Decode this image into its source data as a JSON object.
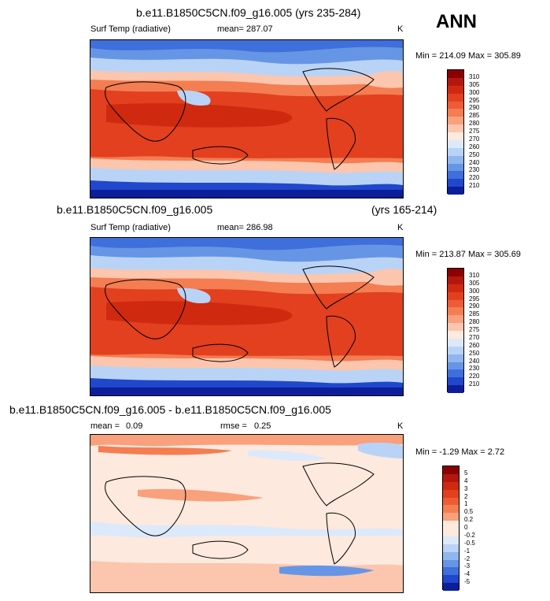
{
  "season": "ANN",
  "panels": [
    {
      "title": "b.e11.B1850C5CN.f09_g16.005 (yrs 235-284)",
      "variable": "Surf Temp (radiative)",
      "mean": "mean= 287.07",
      "units": "K",
      "minmax": "Min = 214.09 Max = 305.89",
      "colorbar": {
        "labels": [
          "310",
          "305",
          "300",
          "295",
          "290",
          "285",
          "280",
          "275",
          "270",
          "260",
          "250",
          "240",
          "230",
          "220",
          "210"
        ],
        "colors": [
          "#8b0000",
          "#b3180e",
          "#cf2a10",
          "#e2401f",
          "#ee5c35",
          "#f47d52",
          "#f9a07c",
          "#fbc6ad",
          "#fde9dd",
          "#dce9fb",
          "#b9d3f6",
          "#8fb6ef",
          "#6695e6",
          "#3f6fdb",
          "#2047cc",
          "#0c1e99"
        ]
      }
    },
    {
      "title": "b.e11.B1850C5CN.f09_g16.005",
      "years": "(yrs 165-214)",
      "variable": "Surf Temp (radiative)",
      "mean": "mean= 286.98",
      "units": "K",
      "minmax": "Min = 213.87 Max = 305.69",
      "colorbar": {
        "labels": [
          "310",
          "305",
          "300",
          "295",
          "290",
          "285",
          "280",
          "275",
          "270",
          "260",
          "250",
          "240",
          "230",
          "220",
          "210"
        ],
        "colors": [
          "#8b0000",
          "#b3180e",
          "#cf2a10",
          "#e2401f",
          "#ee5c35",
          "#f47d52",
          "#f9a07c",
          "#fbc6ad",
          "#fde9dd",
          "#dce9fb",
          "#b9d3f6",
          "#8fb6ef",
          "#6695e6",
          "#3f6fdb",
          "#2047cc",
          "#0c1e99"
        ]
      }
    },
    {
      "title": "b.e11.B1850C5CN.f09_g16.005 - b.e11.B1850C5CN.f09_g16.005",
      "mean_label": "mean =",
      "mean_value": "0.09",
      "rmse_label": "rmse =",
      "rmse_value": "0.25",
      "units": "K",
      "minmax": "Min = -1.29 Max =  2.72",
      "colorbar": {
        "labels": [
          "5",
          "4",
          "3",
          "2",
          "1",
          "0.5",
          "0.2",
          "0",
          "-0.2",
          "-0.5",
          "-1",
          "-2",
          "-3",
          "-4",
          "-5"
        ],
        "colors": [
          "#8b0000",
          "#b3180e",
          "#cf2a10",
          "#e2401f",
          "#ee5c35",
          "#f47d52",
          "#f9a07c",
          "#fde9dd",
          "#fde9dd",
          "#dce9fb",
          "#b9d3f6",
          "#8fb6ef",
          "#6695e6",
          "#3f6fdb",
          "#2047cc",
          "#0c1e99"
        ]
      }
    }
  ]
}
